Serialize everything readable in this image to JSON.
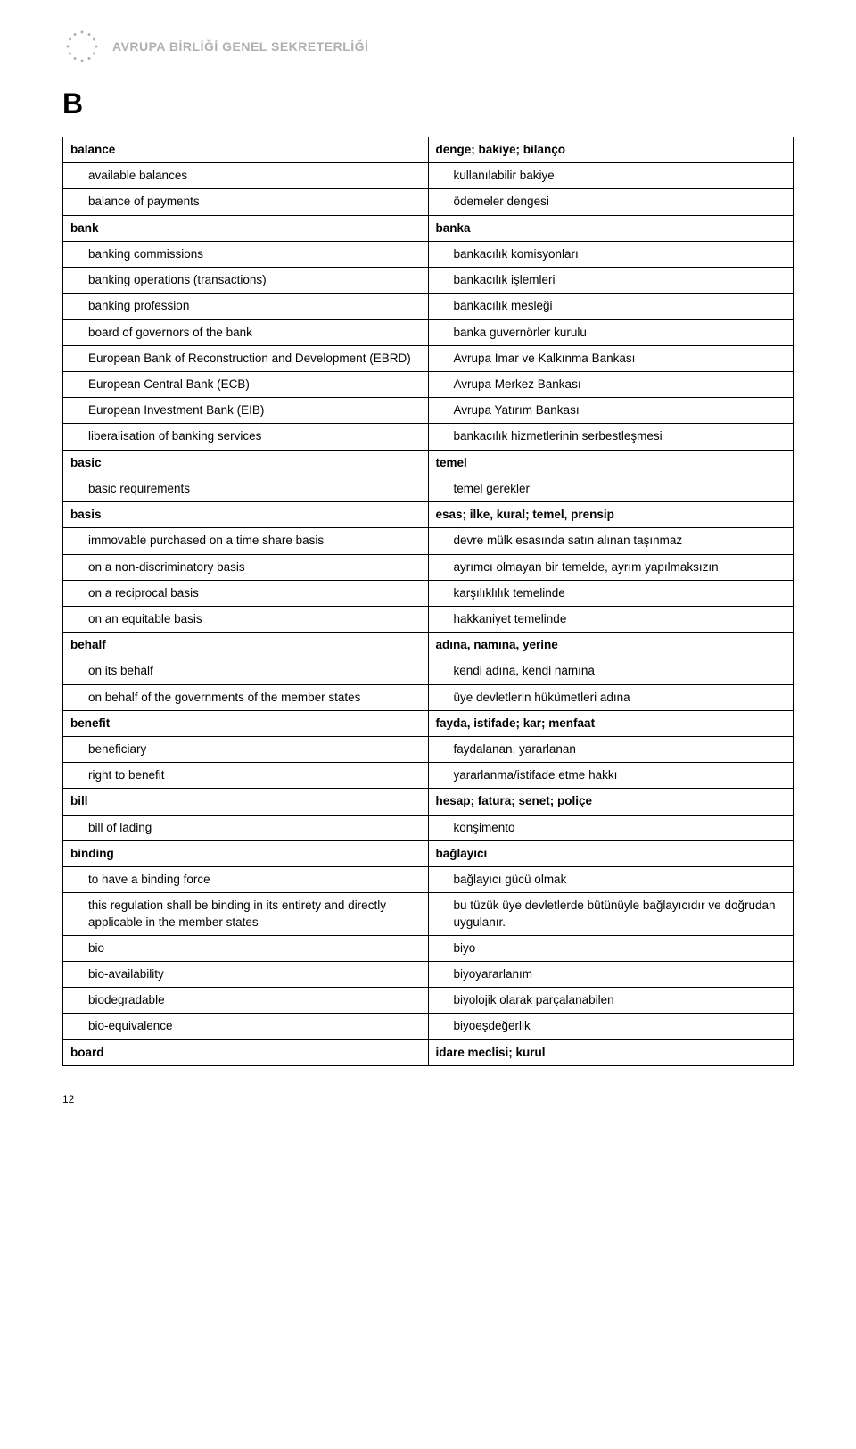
{
  "header": {
    "org_name": "AVRUPA BİRLİĞİ GENEL SEKRETERLİĞİ",
    "logo_color": "#b0b0b0"
  },
  "section_letter": "B",
  "page_number": "12",
  "colors": {
    "text": "#000000",
    "header_text": "#b0b0b0",
    "border": "#000000",
    "background": "#ffffff"
  },
  "rows": [
    {
      "en": "balance",
      "tr": "denge; bakiye; bilanço",
      "level": 0,
      "bold": true
    },
    {
      "en": "available balances",
      "tr": "kullanılabilir bakiye",
      "level": 1,
      "bold": false
    },
    {
      "en": "balance of payments",
      "tr": "ödemeler dengesi",
      "level": 1,
      "bold": false
    },
    {
      "en": "bank",
      "tr": "banka",
      "level": 0,
      "bold": true
    },
    {
      "en": "banking commissions",
      "tr": "bankacılık komisyonları",
      "level": 1,
      "bold": false
    },
    {
      "en": "banking operations (transactions)",
      "tr": "bankacılık işlemleri",
      "level": 1,
      "bold": false
    },
    {
      "en": "banking profession",
      "tr": "bankacılık mesleği",
      "level": 1,
      "bold": false
    },
    {
      "en": "board of governors of the bank",
      "tr": "banka guvernörler kurulu",
      "level": 1,
      "bold": false
    },
    {
      "en": "European Bank of Reconstruction and Development (EBRD)",
      "tr": "Avrupa İmar ve Kalkınma Bankası",
      "level": 1,
      "bold": false
    },
    {
      "en": "European Central Bank (ECB)",
      "tr": "Avrupa Merkez Bankası",
      "level": 1,
      "bold": false
    },
    {
      "en": "European Investment Bank (EIB)",
      "tr": "Avrupa Yatırım Bankası",
      "level": 1,
      "bold": false
    },
    {
      "en": "liberalisation of banking services",
      "tr": "bankacılık hizmetlerinin serbestleşmesi",
      "level": 1,
      "bold": false
    },
    {
      "en": "basic",
      "tr": "temel",
      "level": 0,
      "bold": true
    },
    {
      "en": "basic requirements",
      "tr": "temel gerekler",
      "level": 1,
      "bold": false
    },
    {
      "en": "basis",
      "tr": "esas; ilke, kural; temel, prensip",
      "level": 0,
      "bold": true
    },
    {
      "en": "immovable purchased on a time share basis",
      "tr": "devre mülk esasında satın alınan taşınmaz",
      "level": 1,
      "bold": false
    },
    {
      "en": "on a non-discriminatory basis",
      "tr": "ayrımcı olmayan bir temelde, ayrım yapılmaksızın",
      "level": 1,
      "bold": false
    },
    {
      "en": "on a reciprocal basis",
      "tr": "karşılıklılık temelinde",
      "level": 1,
      "bold": false
    },
    {
      "en": "on an equitable basis",
      "tr": "hakkaniyet temelinde",
      "level": 1,
      "bold": false
    },
    {
      "en": "behalf",
      "tr": "adına, namına, yerine",
      "level": 0,
      "bold": true
    },
    {
      "en": "on its behalf",
      "tr": "kendi adına, kendi namına",
      "level": 1,
      "bold": false
    },
    {
      "en": "on behalf of the governments of the member states",
      "tr": "üye devletlerin hükümetleri adına",
      "level": 1,
      "bold": false
    },
    {
      "en": "benefit",
      "tr": "fayda, istifade; kar; menfaat",
      "level": 0,
      "bold": true
    },
    {
      "en": "beneficiary",
      "tr": "faydalanan, yararlanan",
      "level": 1,
      "bold": false
    },
    {
      "en": "right to benefit",
      "tr": "yararlanma/istifade etme hakkı",
      "level": 1,
      "bold": false
    },
    {
      "en": "bill",
      "tr": "hesap; fatura; senet; poliçe",
      "level": 0,
      "bold": true
    },
    {
      "en": "bill of lading",
      "tr": "konşimento",
      "level": 1,
      "bold": false
    },
    {
      "en": "binding",
      "tr": "bağlayıcı",
      "level": 0,
      "bold": true
    },
    {
      "en": "to have a binding force",
      "tr": "bağlayıcı gücü olmak",
      "level": 1,
      "bold": false
    },
    {
      "en": "this regulation shall be binding in its entirety and directly applicable in the member states",
      "tr": "bu tüzük üye devletlerde bütünüyle bağlayıcıdır ve doğrudan uygulanır.",
      "level": 1,
      "bold": false
    },
    {
      "en": "bio",
      "tr": "biyo",
      "level": 1,
      "bold": false
    },
    {
      "en": "bio-availability",
      "tr": "biyoyararlanım",
      "level": 1,
      "bold": false
    },
    {
      "en": "biodegradable",
      "tr": "biyolojik olarak parçalanabilen",
      "level": 1,
      "bold": false
    },
    {
      "en": "bio-equivalence",
      "tr": "biyoeşdeğerlik",
      "level": 1,
      "bold": false
    },
    {
      "en": "board",
      "tr": "idare meclisi; kurul",
      "level": 0,
      "bold": true
    }
  ]
}
